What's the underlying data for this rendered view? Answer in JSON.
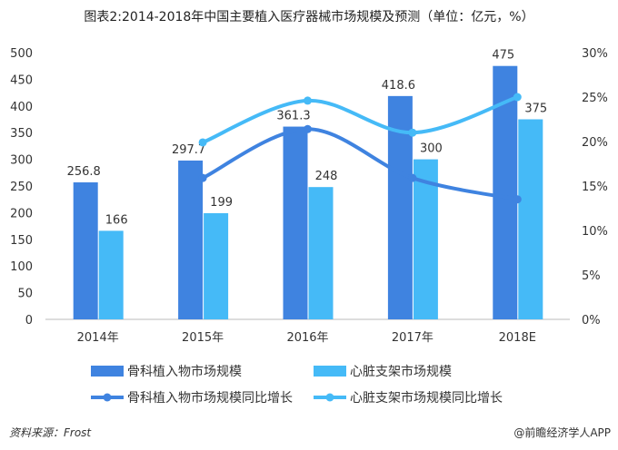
{
  "chart_data": {
    "type": "bar",
    "title": "图表2:2014-2018年中国主要植入医疗器械市场规模及预测（单位：亿元，%）",
    "categories": [
      "2014年",
      "2015年",
      "2016年",
      "2017年",
      "2018E"
    ],
    "series": [
      {
        "name": "骨科植入物市场规模",
        "type": "bar",
        "axis": "left",
        "color": "#3F83E0",
        "values": [
          256.8,
          297.7,
          361.3,
          418.6,
          475
        ]
      },
      {
        "name": "心脏支架市场规模",
        "type": "bar",
        "axis": "left",
        "color": "#45BAF7",
        "values": [
          166,
          199,
          248,
          300,
          375
        ]
      },
      {
        "name": "骨科植入物市场规模同比增长",
        "type": "line",
        "axis": "right",
        "color": "#3F83E0",
        "values": [
          null,
          15.9,
          21.4,
          15.9,
          13.5
        ]
      },
      {
        "name": "心脏支架市场规模同比增长",
        "type": "line",
        "axis": "right",
        "color": "#45BAF7",
        "values": [
          null,
          19.9,
          24.6,
          21.0,
          25.0
        ]
      }
    ],
    "left_axis": {
      "range": [
        0,
        500
      ],
      "ticks": [
        "0",
        "50",
        "100",
        "150",
        "200",
        "250",
        "300",
        "350",
        "400",
        "450",
        "500"
      ]
    },
    "right_axis": {
      "range": [
        0,
        30
      ],
      "ticks": [
        "0%",
        "5%",
        "10%",
        "15%",
        "20%",
        "25%",
        "30%"
      ]
    },
    "data_labels": {
      "0": [
        "256.8",
        "297.7",
        "361.3",
        "418.6",
        "475"
      ],
      "1": [
        "166",
        "199",
        "248",
        "300",
        "375"
      ]
    },
    "grid": false,
    "legend_placement": "bottom"
  },
  "footer": {
    "source": "资料来源：Frost",
    "brand": "@前瞻经济学人APP"
  }
}
